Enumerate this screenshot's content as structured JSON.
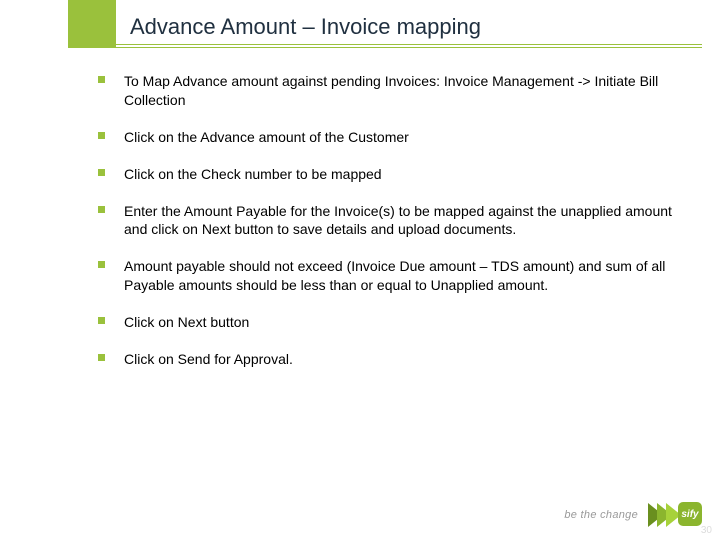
{
  "colors": {
    "accent": "#9ac13c",
    "title_text": "#203040",
    "body_text": "#000000",
    "tagline_text": "#9a9a9a",
    "page_num_text": "#dcdcdc",
    "logo_arrow_dark": "#6a8f1f",
    "logo_arrow_mid": "#8bb52e",
    "logo_arrow_light": "#a7d23a",
    "background": "#ffffff"
  },
  "typography": {
    "title_fontsize": 22,
    "body_fontsize": 14,
    "tagline_fontsize": 11
  },
  "title": "Advance Amount – Invoice mapping",
  "bullets": [
    "To Map Advance amount against pending Invoices: Invoice Management -> Initiate Bill Collection",
    "Click on the Advance amount of the Customer",
    "Click on the Check number to be mapped",
    "Enter the Amount Payable for the Invoice(s) to be mapped against the unapplied amount and click on Next button to save details and upload documents.",
    "Amount payable should not exceed (Invoice Due amount – TDS amount) and sum of all Payable amounts should be less than or equal to Unapplied amount.",
    "Click on Next button",
    "Click on Send for Approval."
  ],
  "footer": {
    "tagline": "be the change",
    "logo_text": "sify",
    "slide_number": "30"
  }
}
